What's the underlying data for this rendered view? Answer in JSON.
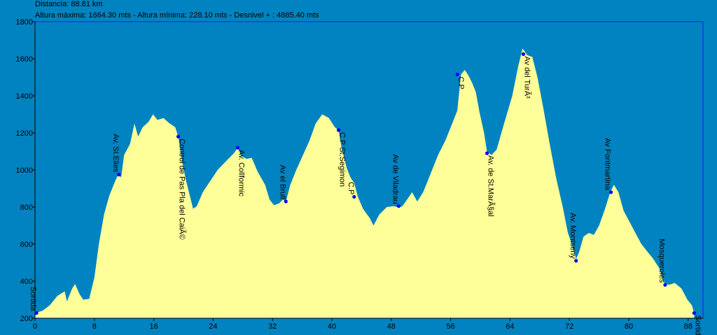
{
  "header": {
    "distance": "Distancia: 88.81 km",
    "stats": "Altura máxima: 1664.30 mts - Altura mínima: 228.10 mts - Desnivel + : 4885.40 mts"
  },
  "colors": {
    "background": "#0083c0",
    "fill": "#ffff99",
    "frame": "#1a1aff",
    "marker": "#0000ff"
  },
  "chart_data": {
    "type": "area",
    "title": "",
    "xlabel": "",
    "ylabel": "",
    "xlim": [
      0,
      90
    ],
    "ylim": [
      200,
      1800
    ],
    "x_ticks": [
      "0",
      "8",
      "16",
      "24",
      "32",
      "40",
      "48",
      "56",
      "64",
      "72",
      "80",
      "88"
    ],
    "y_ticks": [
      "200",
      "400",
      "600",
      "800",
      "1000",
      "1200",
      "1400",
      "1600",
      "1800"
    ],
    "grid": false,
    "profile": [
      [
        0,
        228
      ],
      [
        1,
        240
      ],
      [
        2,
        270
      ],
      [
        3,
        320
      ],
      [
        4,
        345
      ],
      [
        4.3,
        290
      ],
      [
        5,
        360
      ],
      [
        5.4,
        385
      ],
      [
        6,
        330
      ],
      [
        6.5,
        300
      ],
      [
        7.3,
        305
      ],
      [
        8,
        420
      ],
      [
        8.6,
        600
      ],
      [
        9.3,
        760
      ],
      [
        10,
        860
      ],
      [
        10.7,
        930
      ],
      [
        11.2,
        975
      ],
      [
        11.6,
        960
      ],
      [
        12,
        1080
      ],
      [
        12.8,
        1140
      ],
      [
        13.4,
        1250
      ],
      [
        13.9,
        1180
      ],
      [
        14.5,
        1230
      ],
      [
        15.3,
        1260
      ],
      [
        15.9,
        1300
      ],
      [
        16.5,
        1270
      ],
      [
        17.3,
        1280
      ],
      [
        18,
        1255
      ],
      [
        18.9,
        1230
      ],
      [
        19.3,
        1180
      ],
      [
        19.8,
        1050
      ],
      [
        20.3,
        950
      ],
      [
        20.8,
        870
      ],
      [
        21.3,
        790
      ],
      [
        21.8,
        805
      ],
      [
        22.6,
        880
      ],
      [
        23.6,
        940
      ],
      [
        24.6,
        1000
      ],
      [
        25.8,
        1050
      ],
      [
        26.8,
        1090
      ],
      [
        27.3,
        1120
      ],
      [
        27.8,
        1075
      ],
      [
        28.5,
        1060
      ],
      [
        29.2,
        1065
      ],
      [
        30,
        990
      ],
      [
        31,
        920
      ],
      [
        31.6,
        840
      ],
      [
        32.2,
        810
      ],
      [
        32.9,
        820
      ],
      [
        33.4,
        840
      ],
      [
        33.8,
        830
      ],
      [
        34.4,
        920
      ],
      [
        35.2,
        1000
      ],
      [
        36.1,
        1080
      ],
      [
        37,
        1160
      ],
      [
        37.8,
        1250
      ],
      [
        38.7,
        1300
      ],
      [
        39.6,
        1280
      ],
      [
        40.4,
        1230
      ],
      [
        40.9,
        1215
      ],
      [
        41.3,
        1120
      ],
      [
        42,
        1010
      ],
      [
        42.5,
        960
      ],
      [
        43,
        930
      ],
      [
        43.5,
        855
      ],
      [
        44.2,
        790
      ],
      [
        45.1,
        740
      ],
      [
        45.6,
        700
      ],
      [
        46.4,
        760
      ],
      [
        47.4,
        800
      ],
      [
        48.3,
        805
      ],
      [
        49,
        798
      ],
      [
        49.5,
        805
      ],
      [
        50.3,
        850
      ],
      [
        50.8,
        880
      ],
      [
        51.5,
        830
      ],
      [
        52.3,
        880
      ],
      [
        53.3,
        980
      ],
      [
        54.3,
        1080
      ],
      [
        55.3,
        1160
      ],
      [
        56.3,
        1260
      ],
      [
        56.9,
        1320
      ],
      [
        57.4,
        1515
      ],
      [
        57.9,
        1540
      ],
      [
        58.4,
        1510
      ],
      [
        58.9,
        1470
      ],
      [
        59.4,
        1420
      ],
      [
        59.9,
        1310
      ],
      [
        60.5,
        1200
      ],
      [
        60.9,
        1100
      ],
      [
        61.5,
        1080
      ],
      [
        62.2,
        1110
      ],
      [
        63.2,
        1250
      ],
      [
        64.3,
        1400
      ],
      [
        65.1,
        1560
      ],
      [
        65.7,
        1655
      ],
      [
        66.3,
        1620
      ],
      [
        67,
        1610
      ],
      [
        67.7,
        1500
      ],
      [
        68.5,
        1330
      ],
      [
        69.3,
        1150
      ],
      [
        70.2,
        960
      ],
      [
        71.1,
        800
      ],
      [
        71.8,
        660
      ],
      [
        72.5,
        580
      ],
      [
        72.9,
        520
      ],
      [
        73.3,
        555
      ],
      [
        73.9,
        640
      ],
      [
        74.6,
        660
      ],
      [
        75.3,
        650
      ],
      [
        76,
        700
      ],
      [
        76.8,
        790
      ],
      [
        77.5,
        880
      ],
      [
        78,
        920
      ],
      [
        78.6,
        880
      ],
      [
        79.3,
        780
      ],
      [
        80.1,
        720
      ],
      [
        80.9,
        660
      ],
      [
        81.7,
        600
      ],
      [
        82.5,
        560
      ],
      [
        83.3,
        520
      ],
      [
        84.1,
        470
      ],
      [
        84.8,
        390
      ],
      [
        85.4,
        380
      ],
      [
        86.2,
        390
      ],
      [
        87.1,
        360
      ],
      [
        87.9,
        300
      ],
      [
        88.5,
        270
      ],
      [
        88.81,
        228
      ]
    ],
    "waypoints": [
      {
        "label": "Sortida",
        "x": 0.2,
        "y": 228,
        "dir": "up"
      },
      {
        "label": "Av. St.Elies",
        "x": 11.3,
        "y": 975,
        "dir": "up"
      },
      {
        "label": "Control de Pas Pla del CaiÃ©",
        "x": 19.3,
        "y": 1180,
        "dir": "down"
      },
      {
        "label": "Av. Collformic",
        "x": 27.3,
        "y": 1120,
        "dir": "down"
      },
      {
        "label": "Av el Brull",
        "x": 33.8,
        "y": 830,
        "dir": "up"
      },
      {
        "label": "C.P St.Segimon",
        "x": 40.9,
        "y": 1215,
        "dir": "down"
      },
      {
        "label": "C.P",
        "x": 43,
        "y": 855,
        "dir": "up"
      },
      {
        "label": "Av de Viladrau",
        "x": 49,
        "y": 805,
        "dir": "up"
      },
      {
        "label": "C.P",
        "x": 56.9,
        "y": 1515,
        "dir": "down"
      },
      {
        "label": "Av. de St.MarÃ§al",
        "x": 60.9,
        "y": 1090,
        "dir": "down"
      },
      {
        "label": "Av del TurÃ³",
        "x": 65.8,
        "y": 1625,
        "dir": "down"
      },
      {
        "label": "Av. Montseny",
        "x": 72.9,
        "y": 510,
        "dir": "up"
      },
      {
        "label": "Av Fontmartina",
        "x": 77.6,
        "y": 880,
        "dir": "up"
      },
      {
        "label": "Mosqueroles",
        "x": 84.9,
        "y": 380,
        "dir": "up"
      },
      {
        "label": "Sortida",
        "x": 88.81,
        "y": 228,
        "dir": "down"
      }
    ]
  }
}
